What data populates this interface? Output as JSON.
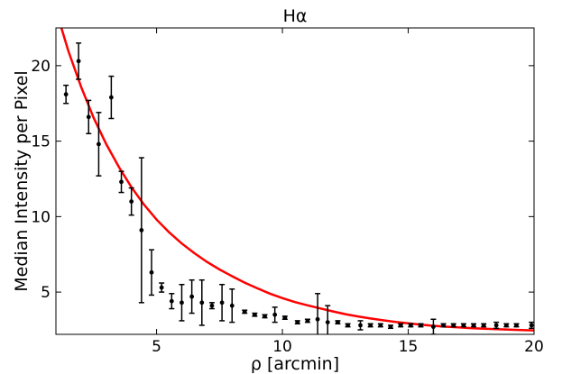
{
  "chart_data": {
    "type": "scatter",
    "title": "Hα",
    "xlabel": "ρ [arcmin]",
    "ylabel": "Median Intensity per Pixel",
    "xlim": [
      1,
      20
    ],
    "ylim": [
      2.2,
      22.5
    ],
    "xticks": [
      5,
      10,
      15,
      20
    ],
    "yticks": [
      5,
      10,
      15,
      20
    ],
    "grid": false,
    "series": [
      {
        "kind": "errorbar-points",
        "color": "#000000",
        "x": [
          1.4,
          1.9,
          2.3,
          2.7,
          3.2,
          3.6,
          4.0,
          4.4,
          4.8,
          5.2,
          5.6,
          6.0,
          6.4,
          6.8,
          7.2,
          7.6,
          8.0,
          8.5,
          8.9,
          9.3,
          9.7,
          10.1,
          10.6,
          11.0,
          11.4,
          11.8,
          12.2,
          12.6,
          13.1,
          13.5,
          13.9,
          14.3,
          14.7,
          15.1,
          15.5,
          16.0,
          16.4,
          16.8,
          17.2,
          17.6,
          18.0,
          18.5,
          18.9,
          19.3,
          19.9
        ],
        "y": [
          18.1,
          20.3,
          16.6,
          14.8,
          17.9,
          12.3,
          11.0,
          9.1,
          6.3,
          5.3,
          4.4,
          4.3,
          4.7,
          4.3,
          4.1,
          4.3,
          4.1,
          3.7,
          3.5,
          3.4,
          3.5,
          3.3,
          3.0,
          3.1,
          3.2,
          3.0,
          3.0,
          2.8,
          2.8,
          2.8,
          2.8,
          2.7,
          2.8,
          2.8,
          2.8,
          2.7,
          2.8,
          2.8,
          2.8,
          2.8,
          2.8,
          2.8,
          2.8,
          2.8,
          2.8
        ],
        "err": [
          0.6,
          1.2,
          1.1,
          2.1,
          1.4,
          0.7,
          0.9,
          4.8,
          1.5,
          0.3,
          0.5,
          1.2,
          1.1,
          1.5,
          0.2,
          1.2,
          1.1,
          0.1,
          0.1,
          0.1,
          0.5,
          0.1,
          0.1,
          0.1,
          1.7,
          1.1,
          0.1,
          0.1,
          0.3,
          0.1,
          0.1,
          0.1,
          0.1,
          0.1,
          0.1,
          0.5,
          0.1,
          0.1,
          0.1,
          0.1,
          0.1,
          0.2,
          0.1,
          0.1,
          0.2
        ]
      },
      {
        "kind": "fit-curve",
        "color": "#ff0000",
        "x": [
          1.0,
          1.5,
          2.0,
          2.5,
          3.0,
          3.5,
          4.0,
          4.5,
          5.0,
          5.5,
          6.0,
          6.5,
          7.0,
          7.5,
          8.0,
          8.5,
          9.0,
          9.5,
          10.0,
          10.5,
          11.0,
          11.5,
          12.0,
          12.5,
          13.0,
          13.5,
          14.0,
          14.5,
          15.0,
          15.5,
          16.0,
          16.5,
          17.0,
          17.5,
          18.0,
          18.5,
          19.0,
          19.5,
          20.0
        ],
        "y": [
          23.7,
          20.95,
          18.6,
          16.55,
          14.8,
          13.3,
          11.95,
          10.8,
          9.8,
          8.96,
          8.22,
          7.58,
          7.0,
          6.5,
          6.05,
          5.63,
          5.25,
          4.9,
          4.6,
          4.34,
          4.12,
          3.92,
          3.72,
          3.54,
          3.39,
          3.25,
          3.13,
          3.02,
          2.93,
          2.84,
          2.77,
          2.71,
          2.66,
          2.61,
          2.57,
          2.54,
          2.51,
          2.48,
          2.46
        ]
      }
    ]
  }
}
